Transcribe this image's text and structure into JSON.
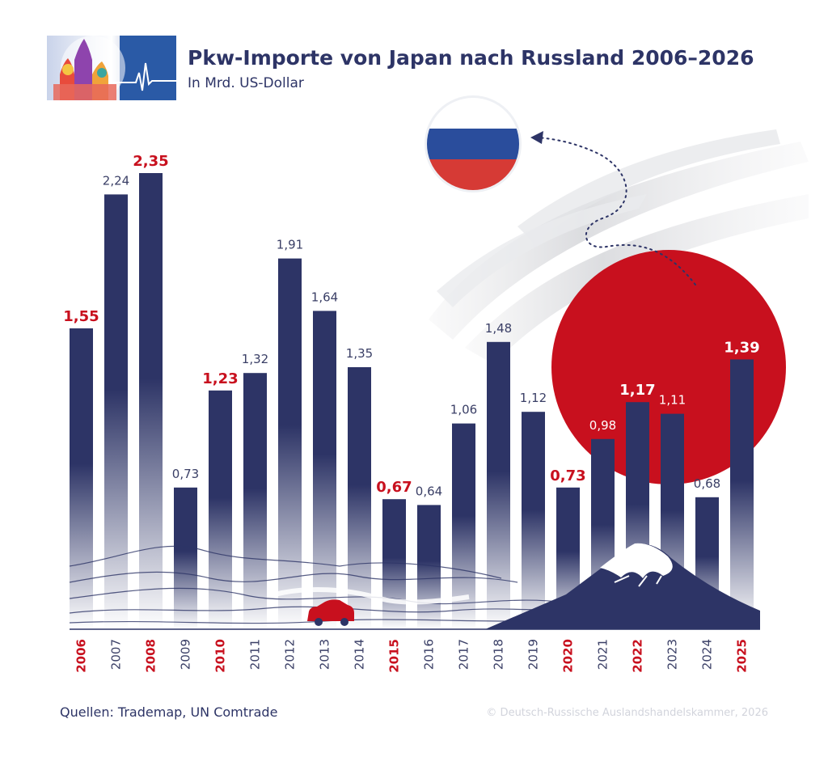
{
  "header": {
    "title": "Pkw-Importe von Japan nach Russland 2006–2026",
    "subtitle": "In Mrd. US-Dollar"
  },
  "footer": {
    "source": "Quellen: Trademap, UN Comtrade",
    "copyright": "© Deutsch-Russische Auslandshandelskammer, 2026"
  },
  "colors": {
    "bar": "#2d3466",
    "highlight": "#c8101e",
    "japan_sun": "#c8101e",
    "flag_white": "#ffffff",
    "flag_blue": "#2a4d9c",
    "flag_red": "#d63a35"
  },
  "chart_data": {
    "type": "bar",
    "title": "Pkw-Importe von Japan nach Russland 2006–2026",
    "subtitle": "In Mrd. US-Dollar",
    "categories": [
      "2006",
      "2007",
      "2008",
      "2009",
      "2010",
      "2011",
      "2012",
      "2013",
      "2014",
      "2015",
      "2016",
      "2017",
      "2018",
      "2019",
      "2020",
      "2021",
      "2022",
      "2023",
      "2024",
      "2025"
    ],
    "values": [
      1.55,
      2.24,
      2.35,
      0.73,
      1.23,
      1.32,
      1.91,
      1.64,
      1.35,
      0.67,
      0.64,
      1.06,
      1.48,
      1.12,
      0.73,
      0.98,
      1.17,
      1.11,
      0.68,
      1.39
    ],
    "labels": [
      "1,55",
      "2,24",
      "2,35",
      "0,73",
      "1,23",
      "1,32",
      "1,91",
      "1,64",
      "1,35",
      "0,67",
      "0,64",
      "1,06",
      "1,48",
      "1,12",
      "0,73",
      "0,98",
      "1,17",
      "1,11",
      "0,68",
      "1,39"
    ],
    "highlighted": [
      "2006",
      "2008",
      "2010",
      "2015",
      "2020",
      "2022",
      "2025"
    ],
    "ylim": [
      0,
      2.5
    ],
    "grid": false,
    "legend": "none"
  }
}
